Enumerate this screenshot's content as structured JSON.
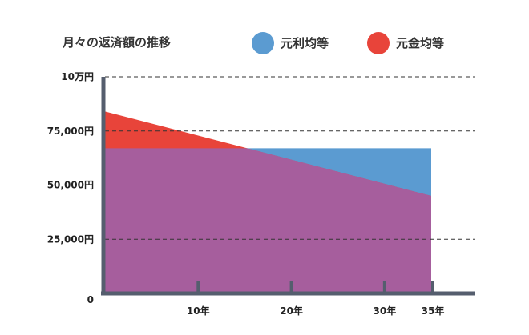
{
  "chart_data": {
    "type": "area",
    "title": "月々の返済額の推移",
    "legend": [
      {
        "label": "元利均等",
        "color": "#5b9bd1"
      },
      {
        "label": "元金均等",
        "color": "#e8443a"
      }
    ],
    "overlap_color": "#a65e9d",
    "legend_position": "top-right",
    "ylim": [
      0,
      100000
    ],
    "xlim": [
      0,
      35
    ],
    "y_ticks": [
      {
        "value": 100000,
        "label": "10万円"
      },
      {
        "value": 75000,
        "label": "75,000円"
      },
      {
        "value": 50000,
        "label": "50,000円"
      },
      {
        "value": 25000,
        "label": "25,000円"
      },
      {
        "value": 0,
        "label": "0"
      }
    ],
    "x_ticks": [
      {
        "value": 10,
        "label": "10年"
      },
      {
        "value": 20,
        "label": "20年"
      },
      {
        "value": 30,
        "label": "30年"
      },
      {
        "value": 35,
        "label": "35年"
      }
    ],
    "series": [
      {
        "name": "元利均等",
        "x": [
          0,
          35
        ],
        "values": [
          67000,
          67000
        ]
      },
      {
        "name": "元金均等",
        "x": [
          0,
          35
        ],
        "values": [
          84000,
          45000
        ]
      }
    ],
    "grid": "dashed horizontal"
  }
}
